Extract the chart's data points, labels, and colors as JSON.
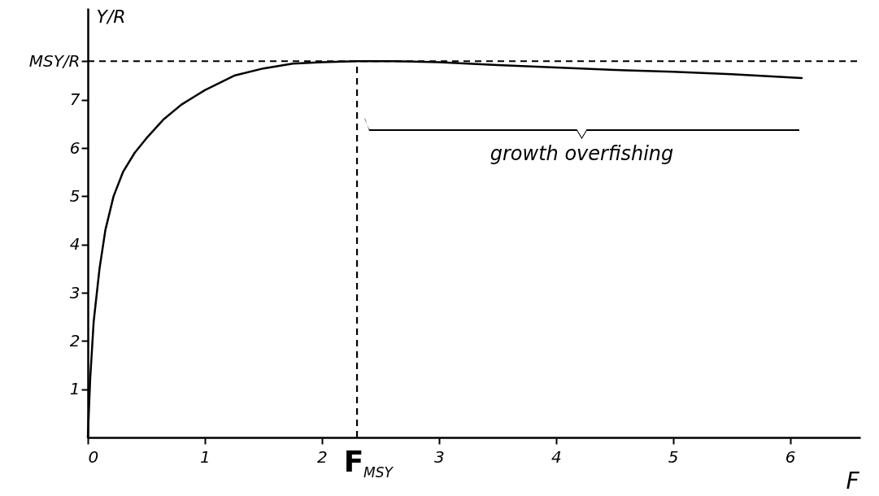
{
  "chart_data": {
    "type": "line",
    "xlabel": "F",
    "ylabel": "Y/R",
    "x": [
      0,
      0.02,
      0.05,
      0.1,
      0.15,
      0.22,
      0.3,
      0.4,
      0.5,
      0.65,
      0.8,
      0.9,
      1.0,
      1.25,
      1.5,
      1.75,
      2.0,
      2.3,
      2.6,
      3.0,
      3.5,
      4.0,
      4.5,
      5.0,
      5.5,
      6.1
    ],
    "series": [
      {
        "color": "#000000",
        "values": [
          0,
          1.2,
          2.4,
          3.5,
          4.3,
          5.0,
          5.5,
          5.9,
          6.2,
          6.6,
          6.9,
          7.05,
          7.2,
          7.5,
          7.65,
          7.75,
          7.78,
          7.8,
          7.8,
          7.78,
          7.72,
          7.67,
          7.62,
          7.58,
          7.53,
          7.45
        ]
      }
    ],
    "xlim": [
      0,
      6.6
    ],
    "ylim": [
      0,
      8.9
    ],
    "xticks": [
      0,
      1,
      2,
      3,
      4,
      5,
      6
    ],
    "yticks": [
      1,
      2,
      3,
      4,
      5,
      6,
      7,
      {
        "value": 7.8,
        "label": "MSY/R"
      }
    ],
    "ref_lines": [
      {
        "axis": "y",
        "value": 7.8,
        "line_style": "dashed"
      },
      {
        "axis": "x",
        "value": 2.3,
        "label": "F$_{MSY}$",
        "line_style": "dashed"
      }
    ],
    "annotations": [
      "growth overfishing"
    ],
    "marker": "none",
    "line_style": "solid"
  }
}
